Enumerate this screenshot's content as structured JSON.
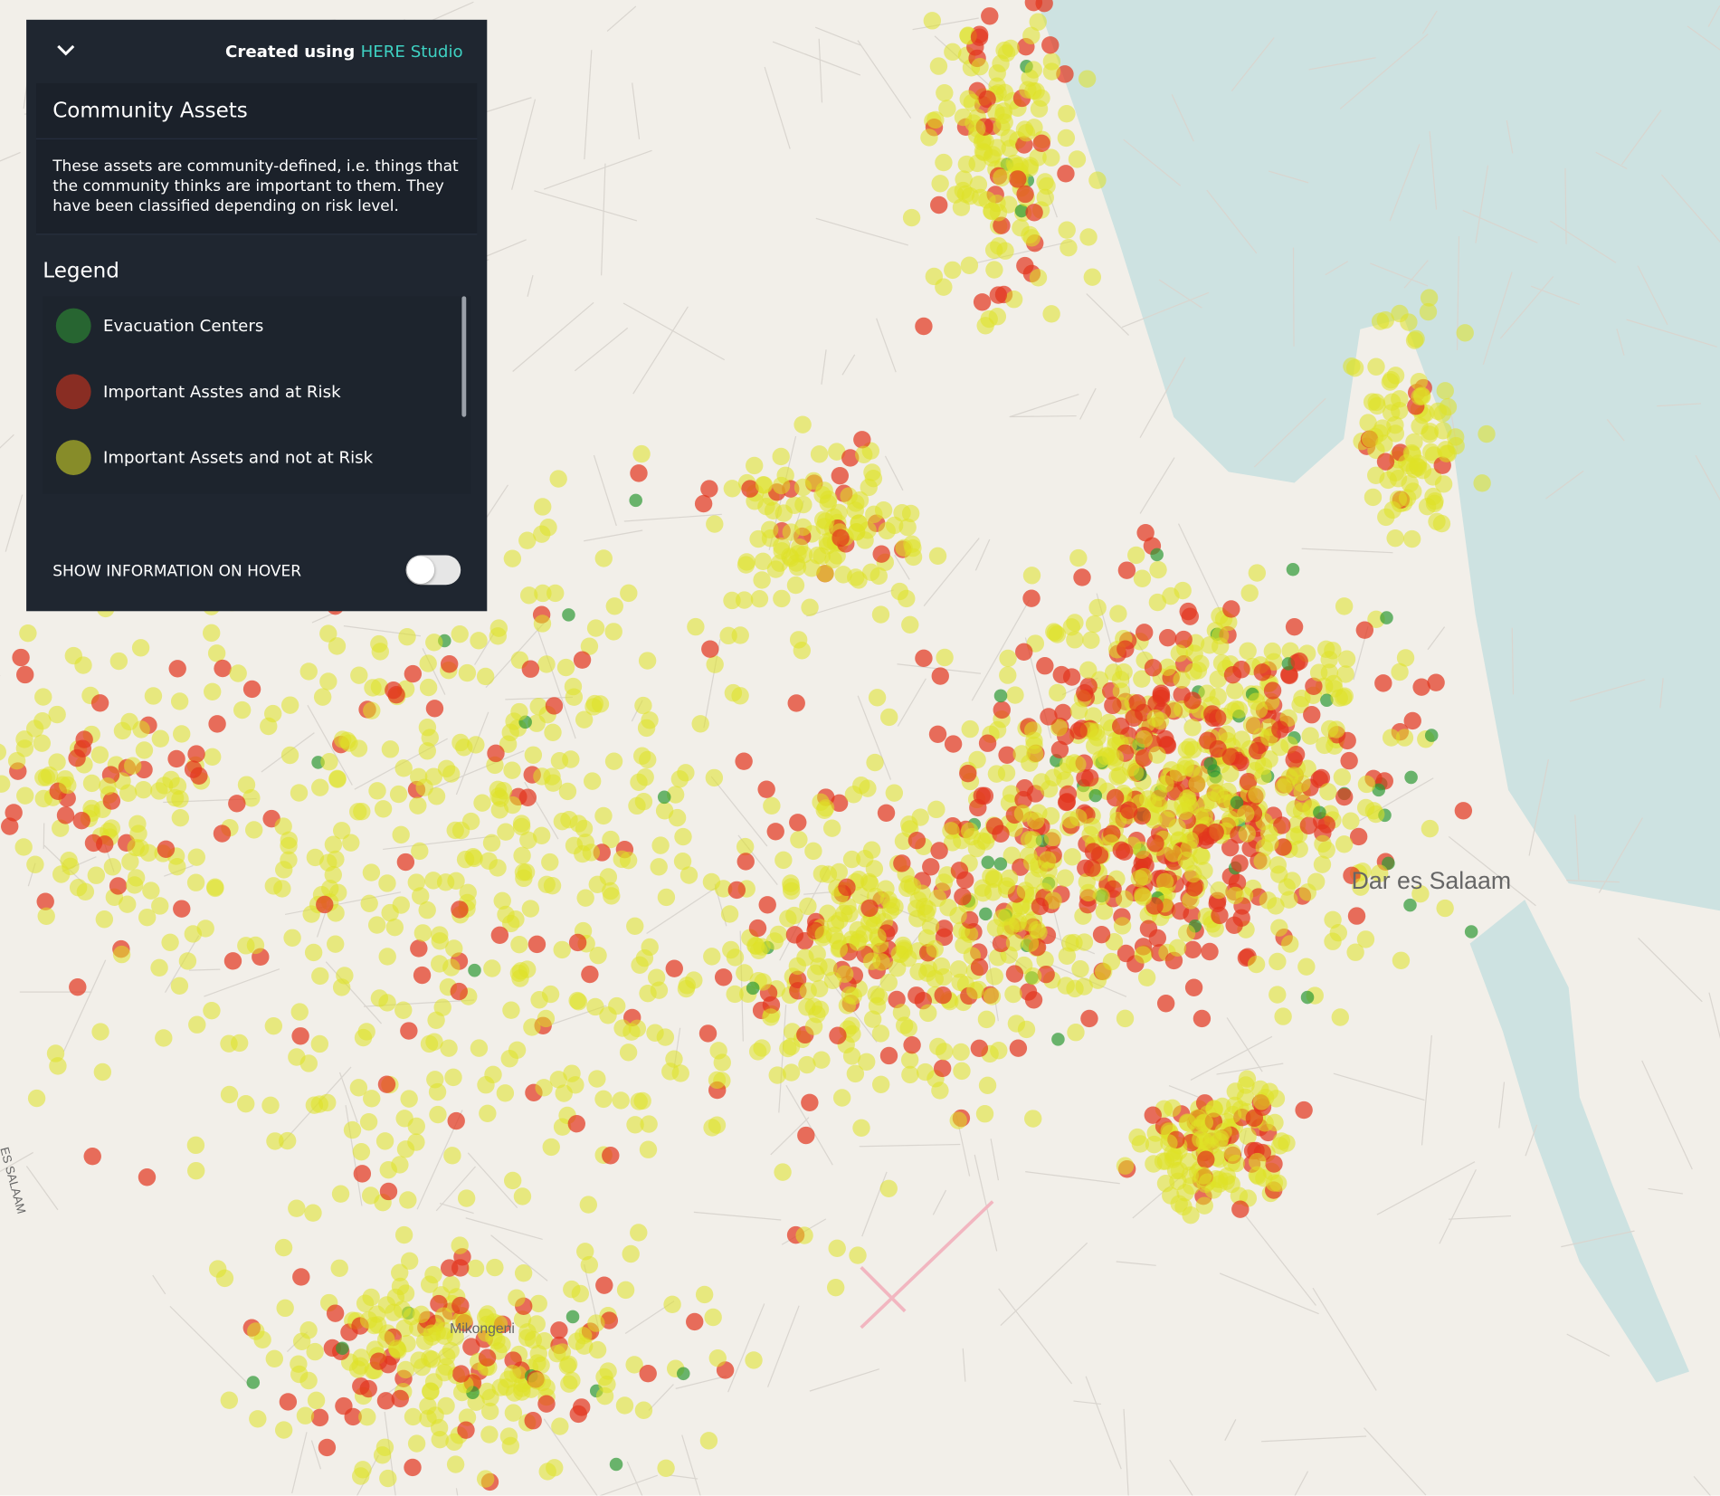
{
  "panel": {
    "credit_prefix": "Created using",
    "credit_link": "HERE Studio",
    "title": "Community Assets",
    "description": "These assets are community-defined, i.e. things that the community thinks are important to them. They have been classified depending on risk level.",
    "legend_title": "Legend",
    "legend": [
      {
        "label": "Evacuation Centers",
        "color": "#2f9a35"
      },
      {
        "label": "Important Asstes and at Risk",
        "color": "#e2341c"
      },
      {
        "label": "Important Assets and not at Risk",
        "color": "#dfe226"
      }
    ],
    "hover_toggle": "SHOW INFORMATION ON HOVER"
  },
  "map": {
    "labels": [
      "Dar es Salaam",
      "Mikongeni",
      "ES SALAAM"
    ]
  }
}
